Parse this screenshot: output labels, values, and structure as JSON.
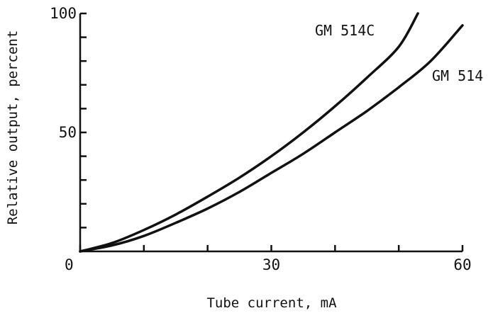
{
  "chart_data": {
    "type": "line",
    "xlabel": "Tube current, mA",
    "ylabel": "Relative output, percent",
    "xlim": [
      0,
      60
    ],
    "ylim": [
      0,
      100
    ],
    "x_ticks": [
      0,
      10,
      20,
      30,
      40,
      50,
      60
    ],
    "x_tick_labels": [
      "0",
      "",
      "",
      "30",
      "",
      "",
      "60"
    ],
    "y_ticks": [
      0,
      10,
      20,
      30,
      40,
      50,
      60,
      70,
      80,
      90,
      100
    ],
    "y_tick_labels": [
      "",
      "",
      "",
      "",
      "",
      "50",
      "",
      "",
      "",
      "",
      "100"
    ],
    "grid": false,
    "series": [
      {
        "name": "GM 514C",
        "color": "#111111",
        "x": [
          0,
          5,
          10,
          15,
          20,
          25,
          30,
          35,
          40,
          45,
          50,
          53
        ],
        "y": [
          0,
          3.5,
          9,
          15.5,
          23,
          31,
          40,
          50,
          61,
          73,
          86,
          100
        ]
      },
      {
        "name": "GM 514",
        "color": "#111111",
        "x": [
          0,
          5,
          10,
          15,
          20,
          25,
          30,
          35,
          40,
          45,
          50,
          55,
          60
        ],
        "y": [
          0,
          2.5,
          6.5,
          12,
          18,
          25,
          33,
          41,
          50,
          59,
          69,
          80,
          95
        ]
      }
    ]
  }
}
